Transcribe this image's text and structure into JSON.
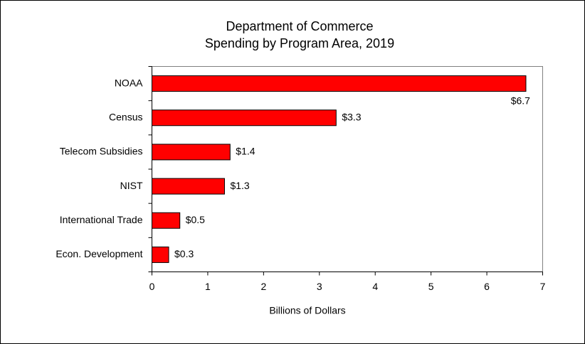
{
  "chart_data": {
    "type": "bar",
    "orientation": "horizontal",
    "title": "Department of Commerce",
    "subtitle": "Spending by Program Area, 2019",
    "xlabel": "Billions of Dollars",
    "categories": [
      "NOAA",
      "Census",
      "Telecom Subsidies",
      "NIST",
      "International Trade",
      "Econ. Development"
    ],
    "values": [
      6.7,
      3.3,
      1.4,
      1.3,
      0.5,
      0.3
    ],
    "value_labels": [
      "$6.7",
      "$3.3",
      "$1.4",
      "$1.3",
      "$0.5",
      "$0.3"
    ],
    "color": "#ff0000",
    "xlim": [
      0,
      7
    ],
    "xticks": [
      0,
      1,
      2,
      3,
      4,
      5,
      6,
      7
    ],
    "grid": false
  }
}
